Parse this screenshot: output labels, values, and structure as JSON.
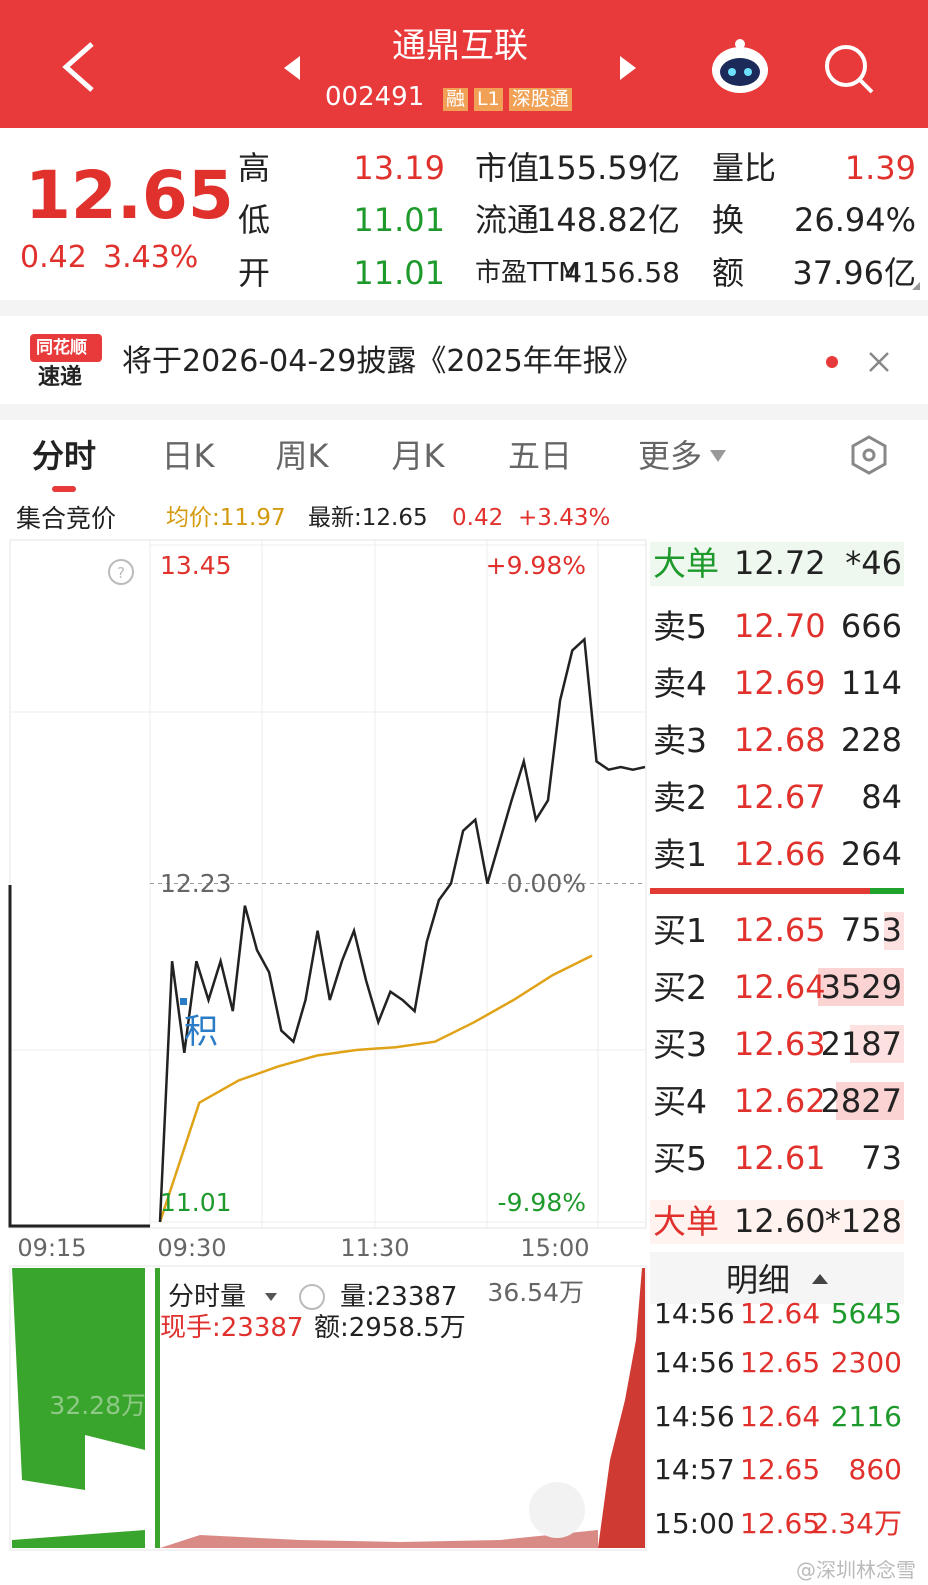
{
  "header": {
    "title": "通鼎互联",
    "code": "002491",
    "tags": [
      "融",
      "L1",
      "深股通"
    ]
  },
  "quote": {
    "price": "12.65",
    "change": "0.42",
    "pct": "3.43%",
    "col1": [
      {
        "label": "高",
        "value": "13.19"
      },
      {
        "label": "低",
        "value": "11.01"
      },
      {
        "label": "开",
        "value": "11.01"
      }
    ],
    "col2": [
      {
        "label": "市值",
        "value": "155.59亿"
      },
      {
        "label": "流通",
        "value": "148.82亿"
      },
      {
        "label": "市盈TTM",
        "value": "4156.58"
      }
    ],
    "col3": [
      {
        "label": "量比",
        "value": "1.39"
      },
      {
        "label": "换",
        "value": "26.94%"
      },
      {
        "label": "额",
        "value": "37.96亿"
      }
    ]
  },
  "notice": {
    "brand": [
      "同花顺",
      "速递"
    ],
    "text": "将于2026-04-29披露《2025年年报》"
  },
  "tabs": [
    "分时",
    "日K",
    "周K",
    "月K",
    "五日",
    "更多"
  ],
  "info": {
    "auction": "集合竞价",
    "avg": "均价:11.97",
    "latest": "最新:12.65",
    "change": "0.42",
    "pct": "+3.43%"
  },
  "intraday": {
    "ylim": [
      11.01,
      13.45
    ],
    "yticks": [
      11.01,
      12.23,
      13.45
    ],
    "pct_ticks": [
      "-9.98%",
      "0.00%",
      "+9.98%"
    ],
    "xticks": [
      "09:15",
      "09:30",
      "11:30",
      "15:00"
    ],
    "marker": "积",
    "price_color": "#222222",
    "avg_color": "#e0a318",
    "price": [
      11.01,
      11.95,
      11.62,
      11.95,
      11.81,
      11.95,
      11.77,
      12.15,
      11.99,
      11.91,
      11.7,
      11.66,
      11.81,
      12.06,
      11.81,
      11.95,
      12.06,
      11.88,
      11.73,
      11.84,
      11.81,
      11.77,
      12.02,
      12.17,
      12.23,
      12.42,
      12.46,
      12.23,
      12.38,
      12.53,
      12.67,
      12.46,
      12.53,
      12.89,
      13.07,
      13.11,
      12.67,
      12.64,
      12.65,
      12.64,
      12.65
    ],
    "avg": [
      11.01,
      11.44,
      11.52,
      11.57,
      11.61,
      11.63,
      11.64,
      11.66,
      11.73,
      11.81,
      11.9,
      11.97
    ]
  },
  "volume": {
    "label": "分时量",
    "vol": "量:23387",
    "hand": "现手:23387",
    "amount": "额:2958.5万",
    "max": "36.54万",
    "pre_max": "32.28万"
  },
  "book": {
    "big_sell": {
      "label": "大单",
      "price": "12.72",
      "vol": "*46"
    },
    "asks": [
      {
        "label": "卖5",
        "price": "12.70",
        "vol": "666"
      },
      {
        "label": "卖4",
        "price": "12.69",
        "vol": "114"
      },
      {
        "label": "卖3",
        "price": "12.68",
        "vol": "228"
      },
      {
        "label": "卖2",
        "price": "12.67",
        "vol": "84"
      },
      {
        "label": "卖1",
        "price": "12.66",
        "vol": "264"
      }
    ],
    "bids": [
      {
        "label": "买1",
        "price": "12.65",
        "vol": "753"
      },
      {
        "label": "买2",
        "price": "12.64",
        "vol": "3529"
      },
      {
        "label": "买3",
        "price": "12.63",
        "vol": "2187"
      },
      {
        "label": "买4",
        "price": "12.62",
        "vol": "2827"
      },
      {
        "label": "买5",
        "price": "12.61",
        "vol": "73"
      }
    ],
    "big_buy": {
      "label": "大单",
      "price": "12.60",
      "vol": "*128"
    }
  },
  "detail": {
    "label": "明细",
    "trades": [
      {
        "time": "14:56",
        "price": "12.64",
        "vol": "5645"
      },
      {
        "time": "14:56",
        "price": "12.65",
        "vol": "2300"
      },
      {
        "time": "14:56",
        "price": "12.64",
        "vol": "2116"
      },
      {
        "time": "14:57",
        "price": "12.65",
        "vol": "860"
      },
      {
        "time": "15:00",
        "price": "12.65",
        "vol": "2.34万"
      }
    ]
  },
  "watermark": "@深圳林念雪"
}
